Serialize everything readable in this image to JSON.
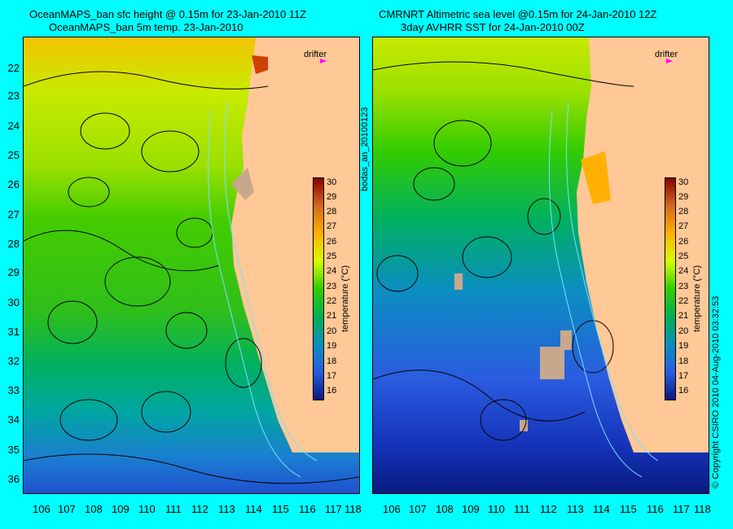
{
  "titles": {
    "left_line1": "OceanMAPS_ban sfc height @ 0.15m for 23-Jan-2010 11Z",
    "left_line2": "OceanMAPS_ban 5m temp. 23-Jan-2010",
    "right_line1": "CMRNRT Altimetric sea level  @0.15m  for 24-Jan-2010 12Z",
    "right_line2": "3day AVHRR SST for 24-Jan-2010 00Z"
  },
  "axes": {
    "lat_labels": [
      "22",
      "23",
      "24",
      "25",
      "26",
      "27",
      "28",
      "29",
      "30",
      "31",
      "32",
      "33",
      "34",
      "35",
      "36"
    ],
    "lon_labels": [
      "106",
      "107",
      "108",
      "109",
      "110",
      "111",
      "112",
      "113",
      "114",
      "115",
      "116",
      "117",
      "118"
    ]
  },
  "colorbar": {
    "ticks": [
      "30",
      "29",
      "28",
      "27",
      "26",
      "25",
      "24",
      "23",
      "22",
      "21",
      "20",
      "19",
      "18",
      "17",
      "16"
    ],
    "label": "temperature (°C)",
    "colors": [
      "#8b0000",
      "#b22222",
      "#d2691e",
      "#ff8c00",
      "#ffb000",
      "#ffd700",
      "#d4ff00",
      "#9be000",
      "#33cc00",
      "#00b050",
      "#00a67a",
      "#0a8fbf",
      "#2a5ce0",
      "#1432b8",
      "#0a1a80"
    ]
  },
  "drifter": {
    "label": "drifter",
    "color": "#ff00ff"
  },
  "side_text": {
    "id": "bodas_an_20100123",
    "copyright": "© Copyright CSIRO 2010   04-Aug-2010 03:32:53"
  }
}
